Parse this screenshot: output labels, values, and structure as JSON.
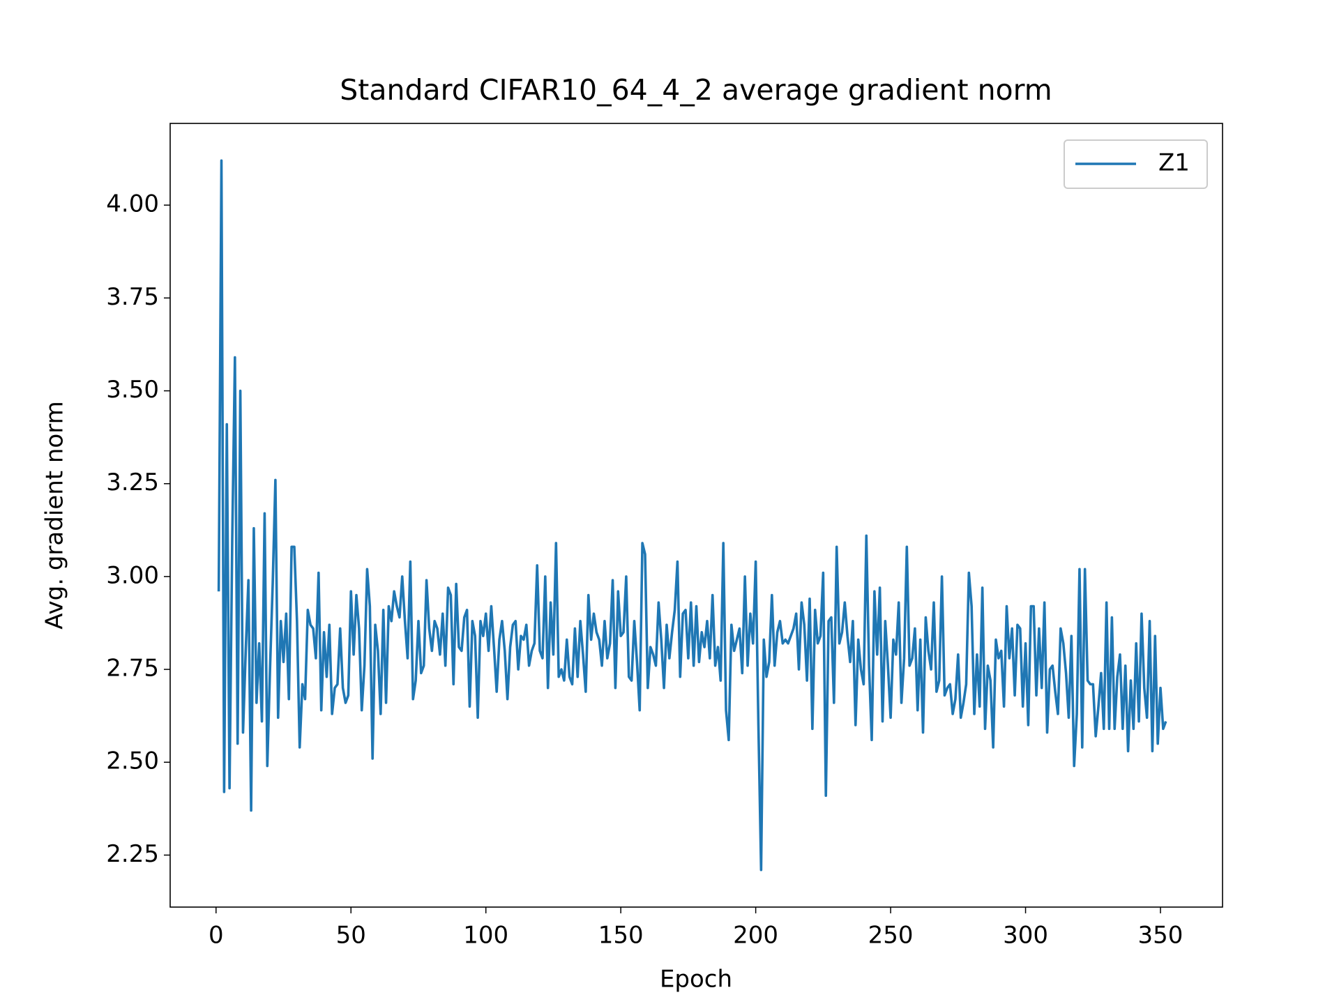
{
  "chart_data": {
    "type": "line",
    "title": "Standard CIFAR10_64_4_2 average gradient norm",
    "xlabel": "Epoch",
    "ylabel": "Avg. gradient norm",
    "legend": "upper right",
    "xlim": [
      -17,
      373
    ],
    "ylim": [
      2.11,
      4.22
    ],
    "xticks": [
      0,
      50,
      100,
      150,
      200,
      250,
      300,
      350
    ],
    "yticks": [
      2.25,
      {
        "value": 2.5,
        "label": "2.50"
      },
      2.75,
      {
        "value": 3,
        "label": "3.00"
      },
      3.25,
      {
        "value": 3.5,
        "label": "3.50"
      },
      3.75,
      {
        "value": 4,
        "label": "4.00"
      }
    ],
    "x": [
      1,
      2,
      3,
      4,
      5,
      6,
      7,
      8,
      9,
      10,
      11,
      12,
      13,
      14,
      15,
      16,
      17,
      18,
      19,
      20,
      21,
      22,
      23,
      24,
      25,
      26,
      27,
      28,
      29,
      30,
      31,
      32,
      33,
      34,
      35,
      36,
      37,
      38,
      39,
      40,
      41,
      42,
      43,
      44,
      45,
      46,
      47,
      48,
      49,
      50,
      51,
      52,
      53,
      54,
      55,
      56,
      57,
      58,
      59,
      60,
      61,
      62,
      63,
      64,
      65,
      66,
      67,
      68,
      69,
      70,
      71,
      72,
      73,
      74,
      75,
      76,
      77,
      78,
      79,
      80,
      81,
      82,
      83,
      84,
      85,
      86,
      87,
      88,
      89,
      90,
      91,
      92,
      93,
      94,
      95,
      96,
      97,
      98,
      99,
      100,
      101,
      102,
      103,
      104,
      105,
      106,
      107,
      108,
      109,
      110,
      111,
      112,
      113,
      114,
      115,
      116,
      117,
      118,
      119,
      120,
      121,
      122,
      123,
      124,
      125,
      126,
      127,
      128,
      129,
      130,
      131,
      132,
      133,
      134,
      135,
      136,
      137,
      138,
      139,
      140,
      141,
      142,
      143,
      144,
      145,
      146,
      147,
      148,
      149,
      150,
      151,
      152,
      153,
      154,
      155,
      156,
      157,
      158,
      159,
      160,
      161,
      162,
      163,
      164,
      165,
      166,
      167,
      168,
      169,
      170,
      171,
      172,
      173,
      174,
      175,
      176,
      177,
      178,
      179,
      180,
      181,
      182,
      183,
      184,
      185,
      186,
      187,
      188,
      189,
      190,
      191,
      192,
      193,
      194,
      195,
      196,
      197,
      198,
      199,
      200,
      201,
      202,
      203,
      204,
      205,
      206,
      207,
      208,
      209,
      210,
      211,
      212,
      213,
      214,
      215,
      216,
      217,
      218,
      219,
      220,
      221,
      222,
      223,
      224,
      225,
      226,
      227,
      228,
      229,
      230,
      231,
      232,
      233,
      234,
      235,
      236,
      237,
      238,
      239,
      240,
      241,
      242,
      243,
      244,
      245,
      246,
      247,
      248,
      249,
      250,
      251,
      252,
      253,
      254,
      255,
      256,
      257,
      258,
      259,
      260,
      261,
      262,
      263,
      264,
      265,
      266,
      267,
      268,
      269,
      270,
      271,
      272,
      273,
      274,
      275,
      276,
      277,
      278,
      279,
      280,
      281,
      282,
      283,
      284,
      285,
      286,
      287,
      288,
      289,
      290,
      291,
      292,
      293,
      294,
      295,
      296,
      297,
      298,
      299,
      300,
      301,
      302,
      303,
      304,
      305,
      306,
      307,
      308,
      309,
      310,
      311,
      312,
      313,
      314,
      315,
      316,
      317,
      318,
      319,
      320,
      321,
      322,
      323,
      324,
      325,
      326,
      327,
      328,
      329,
      330,
      331,
      332,
      333,
      334,
      335,
      336,
      337,
      338,
      339,
      340,
      341,
      342,
      343,
      344,
      345,
      346,
      347,
      348,
      349,
      350,
      351,
      352
    ],
    "series": [
      {
        "name": "Z1",
        "color": "#1f77b4",
        "values": [
          2.96,
          4.12,
          2.42,
          3.41,
          2.43,
          3.1,
          3.59,
          2.55,
          3.5,
          2.58,
          2.8,
          2.99,
          2.37,
          3.13,
          2.66,
          2.82,
          2.61,
          3.17,
          2.49,
          2.75,
          2.98,
          3.26,
          2.62,
          2.88,
          2.77,
          2.9,
          2.67,
          3.08,
          3.08,
          2.88,
          2.54,
          2.71,
          2.67,
          2.91,
          2.87,
          2.86,
          2.78,
          3.01,
          2.64,
          2.85,
          2.73,
          2.87,
          2.63,
          2.7,
          2.71,
          2.86,
          2.7,
          2.66,
          2.68,
          2.96,
          2.79,
          2.95,
          2.86,
          2.64,
          2.76,
          3.02,
          2.92,
          2.51,
          2.87,
          2.8,
          2.63,
          2.91,
          2.66,
          2.92,
          2.88,
          2.96,
          2.92,
          2.89,
          3.0,
          2.88,
          2.78,
          3.04,
          2.67,
          2.72,
          2.88,
          2.74,
          2.76,
          2.99,
          2.86,
          2.8,
          2.88,
          2.86,
          2.79,
          2.9,
          2.76,
          2.97,
          2.95,
          2.71,
          2.98,
          2.81,
          2.8,
          2.89,
          2.91,
          2.65,
          2.88,
          2.84,
          2.62,
          2.88,
          2.84,
          2.9,
          2.8,
          2.92,
          2.81,
          2.69,
          2.83,
          2.88,
          2.8,
          2.67,
          2.81,
          2.87,
          2.88,
          2.75,
          2.84,
          2.83,
          2.87,
          2.76,
          2.8,
          2.82,
          3.03,
          2.8,
          2.78,
          3.0,
          2.7,
          2.93,
          2.79,
          3.09,
          2.73,
          2.75,
          2.72,
          2.83,
          2.73,
          2.71,
          2.86,
          2.73,
          2.88,
          2.79,
          2.69,
          2.95,
          2.83,
          2.9,
          2.85,
          2.83,
          2.76,
          2.88,
          2.78,
          2.82,
          2.99,
          2.7,
          2.96,
          2.84,
          2.85,
          3.0,
          2.73,
          2.72,
          2.88,
          2.77,
          2.64,
          3.09,
          3.06,
          2.7,
          2.81,
          2.79,
          2.76,
          2.93,
          2.83,
          2.7,
          2.87,
          2.78,
          2.85,
          2.91,
          3.04,
          2.73,
          2.9,
          2.91,
          2.78,
          2.93,
          2.76,
          2.92,
          2.77,
          2.85,
          2.81,
          2.88,
          2.78,
          2.95,
          2.76,
          2.81,
          2.72,
          3.09,
          2.64,
          2.56,
          2.87,
          2.8,
          2.83,
          2.86,
          2.74,
          3.0,
          2.76,
          2.9,
          2.82,
          3.04,
          2.6,
          2.21,
          2.83,
          2.73,
          2.77,
          2.95,
          2.76,
          2.85,
          2.88,
          2.82,
          2.83,
          2.82,
          2.84,
          2.86,
          2.9,
          2.75,
          2.93,
          2.87,
          2.72,
          2.94,
          2.59,
          2.91,
          2.82,
          2.84,
          3.01,
          2.41,
          2.88,
          2.89,
          2.66,
          3.08,
          2.82,
          2.85,
          2.93,
          2.84,
          2.77,
          2.88,
          2.6,
          2.83,
          2.75,
          2.71,
          3.11,
          2.76,
          2.56,
          2.96,
          2.79,
          2.97,
          2.61,
          2.88,
          2.76,
          2.62,
          2.83,
          2.79,
          2.93,
          2.66,
          2.78,
          3.08,
          2.76,
          2.78,
          2.86,
          2.64,
          2.83,
          2.58,
          2.89,
          2.8,
          2.75,
          2.93,
          2.69,
          2.72,
          3.0,
          2.68,
          2.7,
          2.71,
          2.63,
          2.67,
          2.79,
          2.62,
          2.66,
          2.71,
          3.01,
          2.92,
          2.63,
          2.79,
          2.65,
          2.97,
          2.59,
          2.76,
          2.72,
          2.54,
          2.83,
          2.78,
          2.8,
          2.65,
          2.92,
          2.78,
          2.86,
          2.68,
          2.87,
          2.86,
          2.65,
          2.82,
          2.6,
          2.92,
          2.92,
          2.68,
          2.86,
          2.7,
          2.93,
          2.58,
          2.75,
          2.76,
          2.69,
          2.63,
          2.86,
          2.82,
          2.74,
          2.62,
          2.84,
          2.49,
          2.63,
          3.02,
          2.54,
          3.02,
          2.72,
          2.71,
          2.71,
          2.57,
          2.65,
          2.74,
          2.59,
          2.93,
          2.59,
          2.89,
          2.59,
          2.73,
          2.79,
          2.59,
          2.76,
          2.53,
          2.72,
          2.59,
          2.82,
          2.61,
          2.9,
          2.7,
          2.62,
          2.88,
          2.53,
          2.84,
          2.55,
          2.7,
          2.59,
          2.61
        ]
      }
    ]
  }
}
